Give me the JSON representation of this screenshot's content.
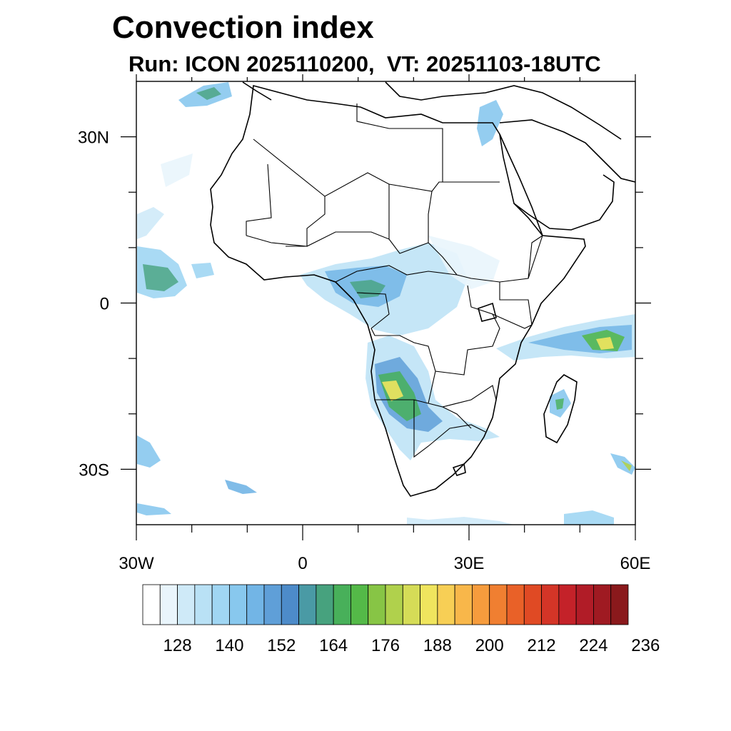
{
  "title": "Convection index",
  "subtitle": "Run: ICON 2025110200,  VT: 20251103-18UTC",
  "map": {
    "projection": "cylindrical equidistant",
    "lon_range": [
      -30,
      60
    ],
    "lat_range": [
      -40,
      40
    ],
    "x_ticks": [
      {
        "lon": -30,
        "label": "30W"
      },
      {
        "lon": 0,
        "label": "0"
      },
      {
        "lon": 30,
        "label": "30E"
      },
      {
        "lon": 60,
        "label": "60E"
      }
    ],
    "y_ticks": [
      {
        "lat": 30,
        "label": "30N"
      },
      {
        "lat": 0,
        "label": "0"
      },
      {
        "lat": -30,
        "label": "30S"
      }
    ],
    "minor_x_ticks": [
      -20,
      -10,
      10,
      20,
      40,
      50
    ],
    "minor_y_ticks": [
      20,
      10,
      -10,
      -20
    ]
  },
  "colorbar": {
    "levels": [
      122,
      125,
      128,
      131,
      134,
      137,
      140,
      143,
      146,
      149,
      152,
      155,
      158,
      161,
      164,
      167,
      170,
      173,
      176,
      179,
      182,
      185,
      188,
      191,
      194,
      197,
      200,
      203,
      206,
      209,
      212,
      215,
      218,
      221,
      224,
      227,
      230,
      233,
      236,
      239
    ],
    "colors": [
      "#ffffff",
      "#e9f5fc",
      "#cfeaf8",
      "#b9e1f5",
      "#a0d6f3",
      "#88c8ee",
      "#72b5e6",
      "#5f9fd8",
      "#4d8bc9",
      "#4a9aa5",
      "#47a27e",
      "#48b05a",
      "#54b948",
      "#87c545",
      "#b0d14c",
      "#d5dc57",
      "#f0e55e",
      "#f7cf55",
      "#f8b74a",
      "#f69c3d",
      "#f07f31",
      "#e96128",
      "#e04a24",
      "#d43527",
      "#c42229",
      "#b11c27",
      "#9f1a22",
      "#8a191c"
    ],
    "labels": [
      "128",
      "140",
      "152",
      "164",
      "176",
      "188",
      "200",
      "212",
      "224",
      "236"
    ]
  },
  "colors": {
    "coast": "#000000",
    "frame": "#000000"
  }
}
